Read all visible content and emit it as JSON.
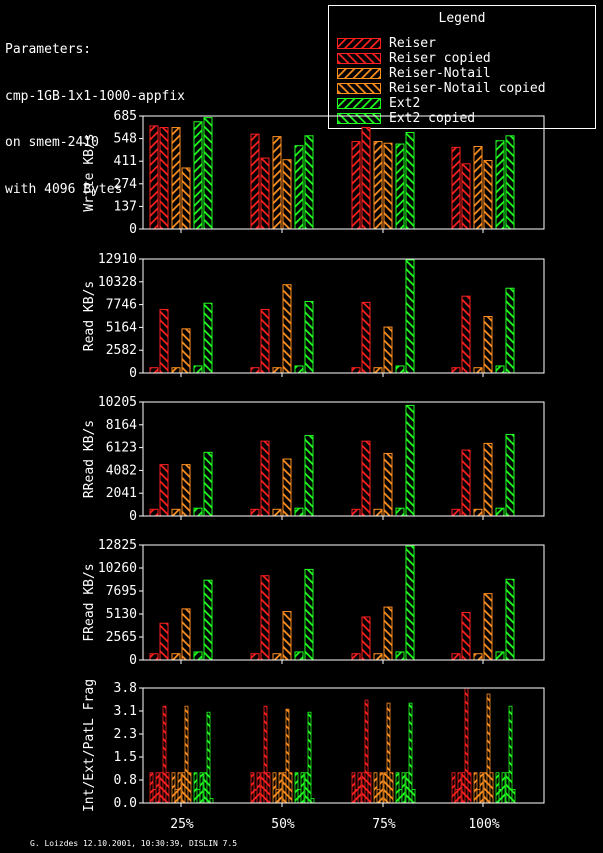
{
  "parameters": {
    "heading": "Parameters:",
    "lines": [
      "cmp-1GB-1x1-1000-appfix",
      "on smem-2410",
      "with 4096 Bytes"
    ]
  },
  "legend": {
    "title": "Legend",
    "items": [
      {
        "label": "Reiser",
        "color": "#ff2020"
      },
      {
        "label": "Reiser copied",
        "color": "#ff2020"
      },
      {
        "label": "Reiser-Notail",
        "color": "#ff9020"
      },
      {
        "label": "Reiser-Notail copied",
        "color": "#ff9020"
      },
      {
        "label": "Ext2",
        "color": "#20ff20"
      },
      {
        "label": "Ext2 copied",
        "color": "#20ff20"
      }
    ]
  },
  "footer": "G. Loizdes 12.10.2001, 10:30:39, DISLIN 7.5",
  "chart_data": [
    {
      "type": "bar",
      "ylabel": "Write KB/s",
      "yticks": [
        "0",
        "137",
        "274",
        "411",
        "548",
        "685"
      ],
      "ylim": [
        0,
        685
      ],
      "categories": [
        "25%",
        "50%",
        "75%",
        "100%"
      ],
      "series": [
        {
          "name": "Reiser",
          "values": [
            625,
            575,
            530,
            495
          ]
        },
        {
          "name": "Reiser copied",
          "values": [
            615,
            430,
            615,
            395
          ]
        },
        {
          "name": "Reiser-Notail",
          "values": [
            615,
            560,
            530,
            500
          ]
        },
        {
          "name": "Reiser-Notail copied",
          "values": [
            370,
            420,
            520,
            415
          ]
        },
        {
          "name": "Ext2",
          "values": [
            650,
            505,
            515,
            535
          ]
        },
        {
          "name": "Ext2 copied",
          "values": [
            675,
            565,
            585,
            565
          ]
        }
      ]
    },
    {
      "type": "bar",
      "ylabel": "Read KB/s",
      "yticks": [
        "0",
        "2582",
        "5164",
        "7746",
        "10328",
        "12910"
      ],
      "ylim": [
        0,
        12910
      ],
      "categories": [
        "25%",
        "50%",
        "75%",
        "100%"
      ],
      "series": [
        {
          "name": "Reiser",
          "values": [
            600,
            600,
            600,
            600
          ]
        },
        {
          "name": "Reiser copied",
          "values": [
            7200,
            7200,
            8000,
            8700
          ]
        },
        {
          "name": "Reiser-Notail",
          "values": [
            600,
            600,
            600,
            600
          ]
        },
        {
          "name": "Reiser-Notail copied",
          "values": [
            5000,
            10000,
            5200,
            6400
          ]
        },
        {
          "name": "Ext2",
          "values": [
            800,
            800,
            800,
            800
          ]
        },
        {
          "name": "Ext2 copied",
          "values": [
            7900,
            8100,
            12800,
            9600
          ]
        }
      ]
    },
    {
      "type": "bar",
      "ylabel": "RRead KB/s",
      "yticks": [
        "0",
        "2041",
        "4082",
        "6123",
        "8164",
        "10205"
      ],
      "ylim": [
        0,
        10205
      ],
      "categories": [
        "25%",
        "50%",
        "75%",
        "100%"
      ],
      "series": [
        {
          "name": "Reiser",
          "values": [
            600,
            600,
            600,
            600
          ]
        },
        {
          "name": "Reiser copied",
          "values": [
            4600,
            6700,
            6700,
            5900
          ]
        },
        {
          "name": "Reiser-Notail",
          "values": [
            600,
            600,
            600,
            600
          ]
        },
        {
          "name": "Reiser-Notail copied",
          "values": [
            4600,
            5100,
            5600,
            6500
          ]
        },
        {
          "name": "Ext2",
          "values": [
            700,
            700,
            700,
            700
          ]
        },
        {
          "name": "Ext2 copied",
          "values": [
            5700,
            7200,
            9900,
            7300
          ]
        }
      ]
    },
    {
      "type": "bar",
      "ylabel": "FRead KB/s",
      "yticks": [
        "0",
        "2565",
        "5130",
        "7695",
        "10260",
        "12825"
      ],
      "ylim": [
        0,
        12825
      ],
      "categories": [
        "25%",
        "50%",
        "75%",
        "100%"
      ],
      "series": [
        {
          "name": "Reiser",
          "values": [
            700,
            700,
            700,
            700
          ]
        },
        {
          "name": "Reiser copied",
          "values": [
            4100,
            9400,
            4800,
            5300
          ]
        },
        {
          "name": "Reiser-Notail",
          "values": [
            700,
            700,
            700,
            700
          ]
        },
        {
          "name": "Reiser-Notail copied",
          "values": [
            5700,
            5400,
            5900,
            7400
          ]
        },
        {
          "name": "Ext2",
          "values": [
            900,
            900,
            900,
            900
          ]
        },
        {
          "name": "Ext2 copied",
          "values": [
            8900,
            10100,
            12700,
            9000
          ]
        }
      ]
    },
    {
      "type": "bar",
      "ylabel": "Int/Ext/PatL Frag",
      "yticks": [
        "0.0",
        "0.8",
        "1.5",
        "2.3",
        "3.1",
        "3.8"
      ],
      "ylim": [
        0,
        3.8
      ],
      "categories": [
        "25%",
        "50%",
        "75%",
        "100%"
      ],
      "triplets": true,
      "series": [
        {
          "name": "Reiser",
          "values": [
            [
              1.0,
              0.45,
              1.0
            ],
            [
              1.0,
              0.45,
              1.0
            ],
            [
              1.0,
              0.45,
              1.0
            ],
            [
              1.0,
              0.45,
              1.0
            ]
          ]
        },
        {
          "name": "Reiser copied",
          "values": [
            [
              1.0,
              3.2,
              1.0
            ],
            [
              1.0,
              3.2,
              1.0
            ],
            [
              1.0,
              3.4,
              1.0
            ],
            [
              1.0,
              3.8,
              1.0
            ]
          ]
        },
        {
          "name": "Reiser-Notail",
          "values": [
            [
              1.0,
              0.45,
              1.0
            ],
            [
              1.0,
              0.45,
              1.0
            ],
            [
              1.0,
              0.45,
              1.0
            ],
            [
              1.0,
              0.45,
              1.0
            ]
          ]
        },
        {
          "name": "Reiser-Notail copied",
          "values": [
            [
              1.0,
              3.2,
              1.0
            ],
            [
              1.0,
              3.1,
              1.0
            ],
            [
              1.0,
              3.3,
              1.0
            ],
            [
              1.0,
              3.6,
              1.0
            ]
          ]
        },
        {
          "name": "Ext2",
          "values": [
            [
              1.0,
              0.45,
              1.0
            ],
            [
              1.0,
              0.45,
              1.0
            ],
            [
              1.0,
              0.45,
              1.0
            ],
            [
              1.0,
              0.45,
              1.0
            ]
          ]
        },
        {
          "name": "Ext2 copied",
          "values": [
            [
              1.0,
              3.0,
              0.15
            ],
            [
              1.0,
              3.0,
              0.15
            ],
            [
              1.0,
              3.3,
              0.45
            ],
            [
              1.0,
              3.2,
              0.45
            ]
          ]
        }
      ]
    }
  ]
}
